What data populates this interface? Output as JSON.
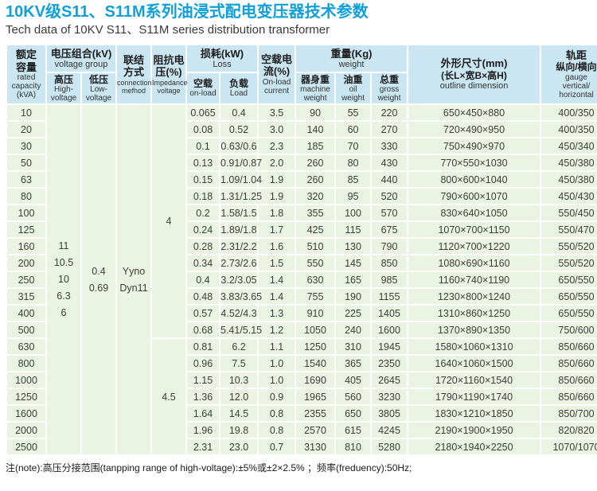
{
  "title": "10KV级S11、S11M系列油浸式配电变压器技术参数",
  "subtitle": "Tech data of 10KV S11、S11M series distribution transformer",
  "note": "注(note):高压分接范围(tanpping range of high-voltage):±5%或±2×2.5% ；频率(freduency):50Hz;",
  "colors": {
    "title_blue": "#0fa0da",
    "header_bg": "#c9e6f2",
    "body_bg": "#ebf3e2"
  },
  "table": {
    "headers": {
      "capacity": {
        "zh": "额定\n容量",
        "en": "rated\ncapacity\n(kVA)"
      },
      "voltage_group": {
        "zh": "电压组合(kV)",
        "en": "voltage group"
      },
      "high_voltage": {
        "zh": "高压",
        "en": "High-\nvoltage"
      },
      "low_voltage": {
        "zh": "低压",
        "en": "Low-\nvoltage"
      },
      "connection": {
        "zh": "联结\n方式",
        "en": "connection\nmefhod"
      },
      "impedance": {
        "zh": "阻抗电\n压(%)",
        "en": "Impedance\nvoltage"
      },
      "loss": {
        "zh": "损耗(kW)",
        "en": "Loss"
      },
      "loss_no_load": {
        "zh": "空载",
        "en": "on-load"
      },
      "loss_load": {
        "zh": "负载",
        "en": "Load"
      },
      "no_load_current": {
        "zh": "空载电\n流(%)",
        "en": "On-load\ncurrent"
      },
      "weight": {
        "zh": "重量(Kg)",
        "en": "weight"
      },
      "machine_weight": {
        "zh": "器身重",
        "en": "machine\nweight"
      },
      "oil_weight": {
        "zh": "油重",
        "en": "oil\nweight"
      },
      "gross_weight": {
        "zh": "总重",
        "en": "gross\nweight"
      },
      "dimension": {
        "zh": "外形尺寸(mm)",
        "zh2": "(长L×宽B×高H)",
        "en": "outline dimension"
      },
      "gauge": {
        "zh": "轨距",
        "zh2": "纵向/横向",
        "en": "gauge\nvertical/\nhorizontal"
      }
    },
    "merged": {
      "high_voltage": [
        "11",
        "10.5",
        "10",
        "6.3",
        "6"
      ],
      "low_voltage": [
        "0.4",
        "0.69"
      ],
      "connection": [
        "Yyno",
        "Dyn11"
      ],
      "impedance": [
        {
          "value": "4",
          "rows": 14
        },
        {
          "value": "4.5",
          "rows": 7
        }
      ]
    },
    "rows": [
      [
        "10",
        "0.065",
        "0.4",
        "3.5",
        "90",
        "55",
        "220",
        "650×450×880",
        "400/350"
      ],
      [
        "20",
        "0.08",
        "0.52",
        "3.0",
        "140",
        "60",
        "270",
        "720×490×950",
        "400/350"
      ],
      [
        "30",
        "0.1",
        "0.63/0.6",
        "2.3",
        "185",
        "70",
        "330",
        "750×490×970",
        "450/340"
      ],
      [
        "50",
        "0.13",
        "0.91/0.87",
        "2.0",
        "260",
        "80",
        "430",
        "770×550×1030",
        "450/380"
      ],
      [
        "63",
        "0.15",
        "1.09/1.04",
        "1.9",
        "260",
        "85",
        "440",
        "800×600×1040",
        "450/380"
      ],
      [
        "80",
        "0.18",
        "1.31/1.25",
        "1.9",
        "320",
        "95",
        "520",
        "790×600×1070",
        "450/430"
      ],
      [
        "100",
        "0.2",
        "1.58/1.5",
        "1.8",
        "355",
        "100",
        "570",
        "830×640×1050",
        "550/450"
      ],
      [
        "125",
        "0.24",
        "1.89/1.8",
        "1.7",
        "425",
        "115",
        "675",
        "1070×700×1150",
        "550/470"
      ],
      [
        "160",
        "0.28",
        "2.31/2.2",
        "1.6",
        "510",
        "130",
        "790",
        "1120×700×1220",
        "550/520"
      ],
      [
        "200",
        "0.34",
        "2.73/2.6",
        "1.5",
        "550",
        "145",
        "850",
        "1080×690×1160",
        "550/520"
      ],
      [
        "250",
        "0.4",
        "3.2/3.05",
        "1.4",
        "630",
        "165",
        "985",
        "1160×740×1190",
        "650/550"
      ],
      [
        "315",
        "0.48",
        "3.83/3.65",
        "1.4",
        "755",
        "190",
        "1155",
        "1230×800×1240",
        "650/550"
      ],
      [
        "400",
        "0.57",
        "4.52/4.3",
        "1.3",
        "910",
        "225",
        "1405",
        "1310×860×1250",
        "650/550"
      ],
      [
        "500",
        "0.68",
        "5.41/5.15",
        "1.2",
        "1050",
        "240",
        "1600",
        "1370×890×1350",
        "750/600"
      ],
      [
        "630",
        "0.81",
        "6.2",
        "1.1",
        "1250",
        "310",
        "1945",
        "1580×1060×1310",
        "850/660"
      ],
      [
        "800",
        "0.96",
        "7.5",
        "1.0",
        "1540",
        "365",
        "2350",
        "1640×1060×1500",
        "850/660"
      ],
      [
        "1000",
        "1.15",
        "10.3",
        "1.0",
        "1690",
        "405",
        "2645",
        "1720×1160×1540",
        "850/660"
      ],
      [
        "1250",
        "1.36",
        "12.0",
        "0.9",
        "1965",
        "560",
        "3230",
        "1790×1190×1740",
        "850/660"
      ],
      [
        "1600",
        "1.64",
        "14.5",
        "0.8",
        "2355",
        "650",
        "3805",
        "1830×1210×1850",
        "850/700"
      ],
      [
        "2000",
        "1.96",
        "19.8",
        "0.8",
        "2570",
        "615",
        "4245",
        "2190×1900×1950",
        "820/820"
      ],
      [
        "2500",
        "2.31",
        "23.0",
        "0.7",
        "3130",
        "810",
        "5280",
        "2180×1940×2250",
        "1070/1070"
      ]
    ]
  }
}
